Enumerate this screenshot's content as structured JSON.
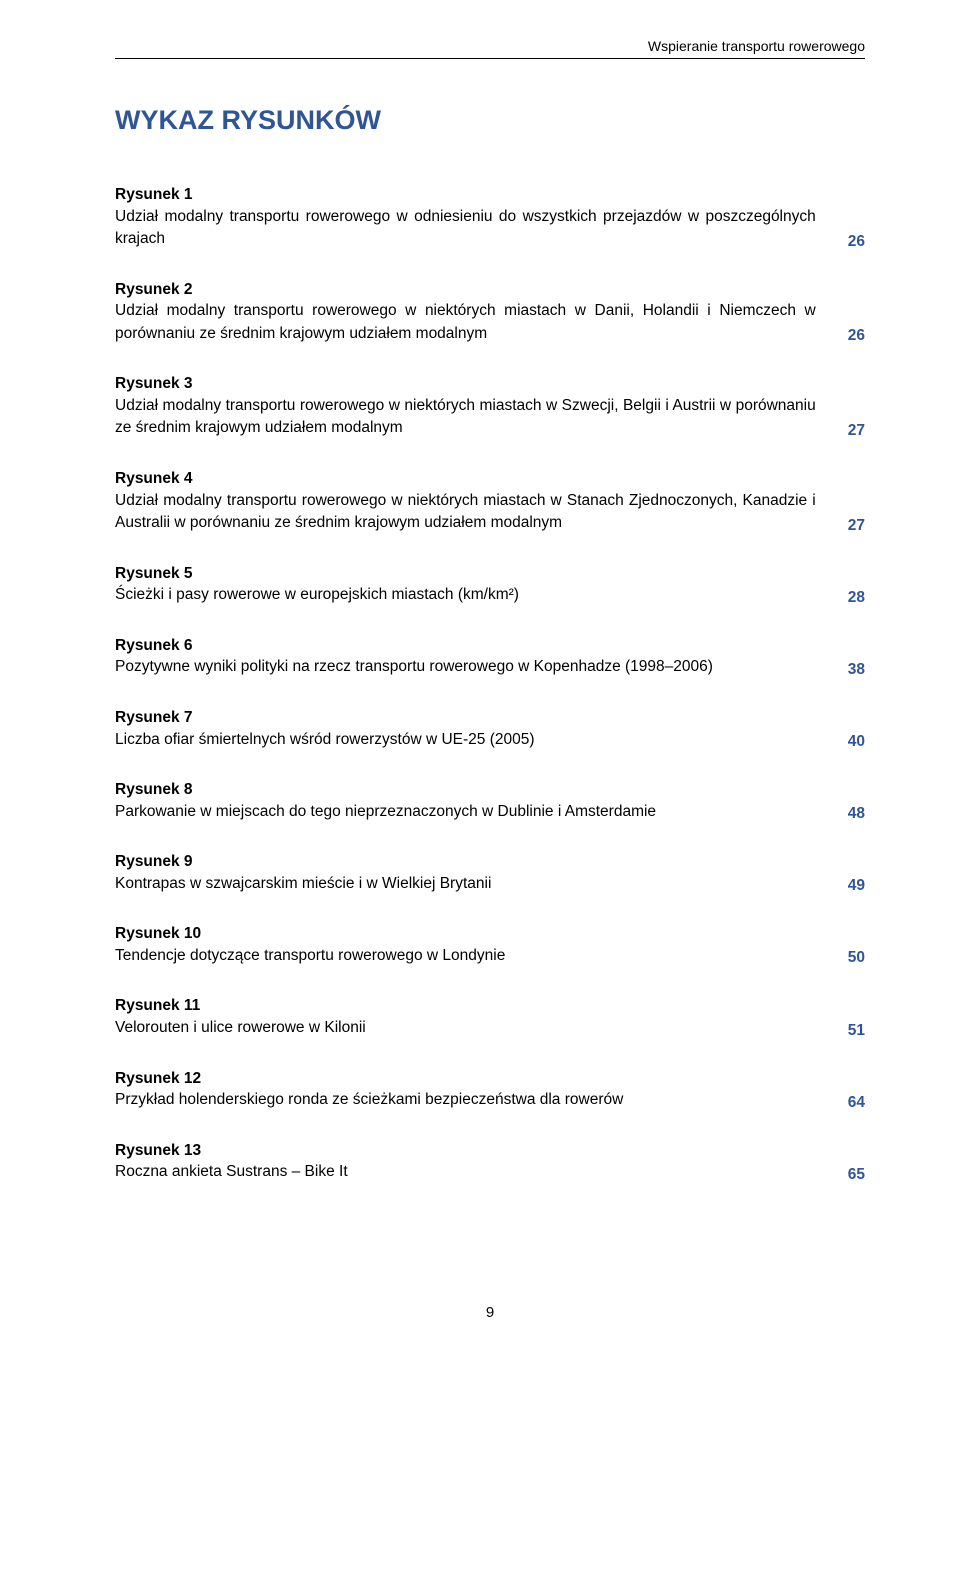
{
  "header": {
    "running_head": "Wspieranie transportu rowerowego"
  },
  "title": {
    "text": "WYKAZ RYSUNKÓW",
    "color": "#2f5597"
  },
  "entries": [
    {
      "label": "Rysunek 1",
      "desc": "Udział modalny transportu rowerowego w odniesieniu do wszystkich przejazdów w poszczególnych krajach",
      "page": "26",
      "page_color": "#2f5597"
    },
    {
      "label": "Rysunek 2",
      "desc": "Udział modalny transportu rowerowego w niektórych miastach w Danii, Holandii i Niemczech w porównaniu ze średnim krajowym udziałem modalnym",
      "page": "26",
      "page_color": "#2f5597"
    },
    {
      "label": "Rysunek 3",
      "desc": "Udział modalny transportu rowerowego w niektórych miastach w Szwecji, Belgii i Austrii w porównaniu ze średnim krajowym udziałem modalnym",
      "page": "27",
      "page_color": "#2f5597"
    },
    {
      "label": "Rysunek 4",
      "desc": "Udział modalny transportu rowerowego w niektórych miastach w Stanach Zjednoczonych, Kanadzie i Australii w porównaniu ze średnim krajowym udziałem modalnym",
      "page": "27",
      "page_color": "#2f5597"
    },
    {
      "label": "Rysunek 5",
      "desc": "Ścieżki i pasy rowerowe w europejskich miastach (km/km²)",
      "page": "28",
      "page_color": "#2f5597"
    },
    {
      "label": "Rysunek 6",
      "desc": "Pozytywne wyniki polityki na rzecz transportu rowerowego w Kopenhadze (1998–2006)",
      "page": "38",
      "page_color": "#2f5597"
    },
    {
      "label": "Rysunek 7",
      "desc": "Liczba ofiar śmiertelnych wśród rowerzystów w UE-25 (2005)",
      "page": "40",
      "page_color": "#2f5597"
    },
    {
      "label": "Rysunek 8",
      "desc": "Parkowanie w miejscach do tego nieprzeznaczonych w Dublinie i Amsterdamie",
      "page": "48",
      "page_color": "#2f5597"
    },
    {
      "label": "Rysunek 9",
      "desc": "Kontrapas w szwajcarskim mieście i w Wielkiej Brytanii",
      "page": "49",
      "page_color": "#2f5597"
    },
    {
      "label": "Rysunek 10",
      "desc": "Tendencje dotyczące transportu rowerowego w Londynie",
      "page": "50",
      "page_color": "#2f5597"
    },
    {
      "label": "Rysunek 11",
      "desc": "Velorouten i ulice rowerowe w Kilonii",
      "page": "51",
      "page_color": "#2f5597"
    },
    {
      "label": "Rysunek 12",
      "desc": "Przykład holenderskiego ronda ze ścieżkami bezpieczeństwa dla rowerów",
      "page": "64",
      "page_color": "#2f5597"
    },
    {
      "label": "Rysunek 13",
      "desc": "Roczna ankieta Sustrans – Bike It",
      "page": "65",
      "page_color": "#2f5597"
    }
  ],
  "footer": {
    "page_number": "9"
  }
}
